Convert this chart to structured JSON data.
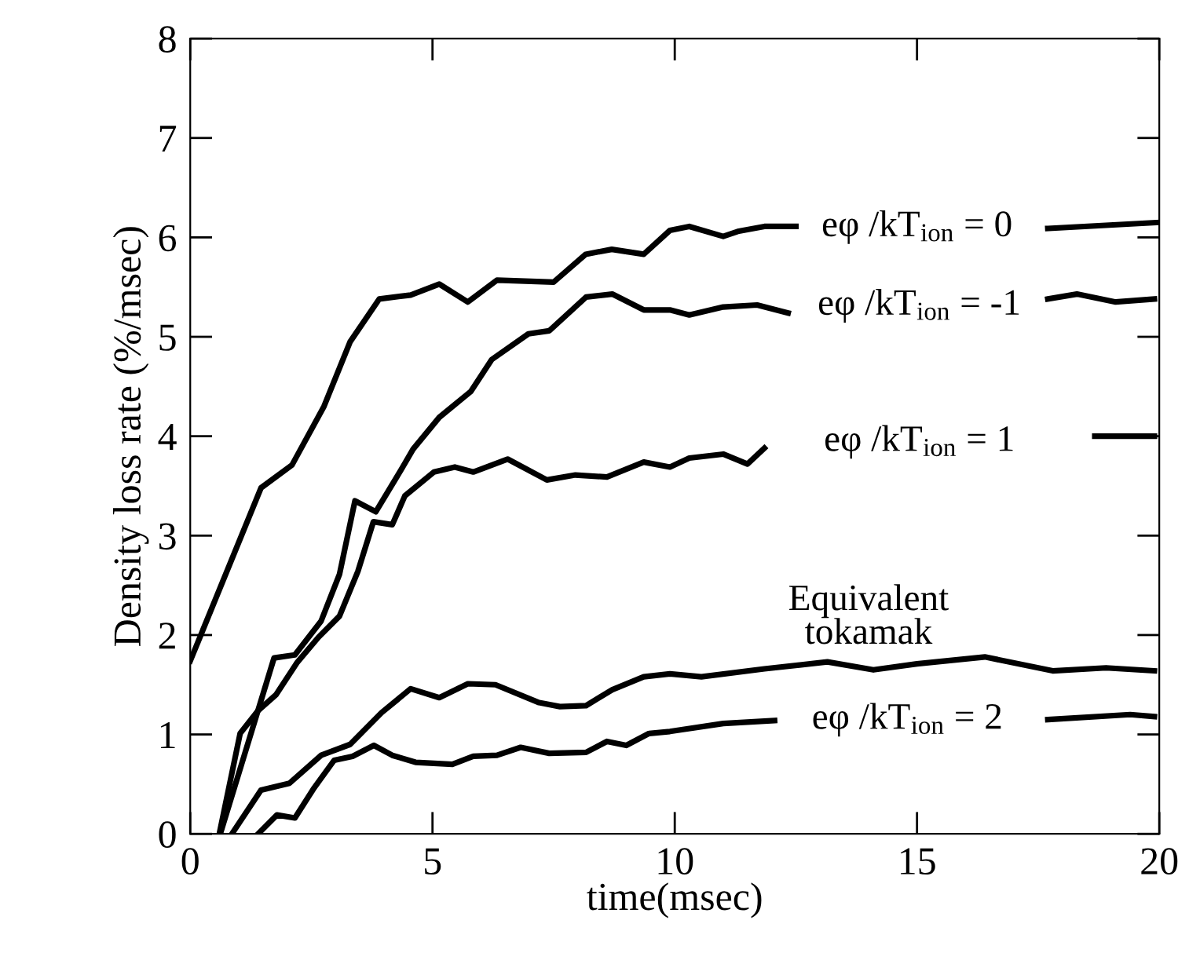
{
  "chart_data": {
    "type": "line",
    "xlabel": "time(msec)",
    "ylabel": "Density loss rate (%/msec)",
    "xlim": [
      0,
      20
    ],
    "ylim": [
      0,
      8
    ],
    "xticks": [
      0,
      5,
      10,
      15,
      20
    ],
    "yticks": [
      0,
      1,
      2,
      3,
      4,
      5,
      6,
      7,
      8
    ],
    "grid": false,
    "legend": false,
    "marker": "none",
    "line_style": "solid",
    "series": [
      {
        "name": "eφ /kT$_{ion}$ = 0",
        "color": "#000000",
        "x": [
          0,
          1.46,
          2.1,
          2.76,
          3.3,
          3.9,
          4.55,
          5.14,
          5.73,
          6.33,
          7.5,
          8.16,
          8.7,
          9.36,
          9.9,
          10.3,
          11.0,
          11.3,
          11.85,
          12.5,
          15.0,
          17.7,
          19.97
        ],
        "values": [
          1.74,
          3.48,
          3.71,
          4.3,
          4.95,
          5.38,
          5.42,
          5.53,
          5.35,
          5.57,
          5.55,
          5.83,
          5.88,
          5.83,
          6.07,
          6.11,
          6.01,
          6.06,
          6.11,
          6.11,
          null,
          6.09,
          6.15
        ]
      },
      {
        "name": "eφ /kT$_{ion}$ = -1",
        "color": "#000000",
        "x": [
          0.62,
          1.73,
          2.16,
          2.7,
          3.08,
          3.4,
          3.83,
          4.35,
          4.6,
          5.14,
          5.79,
          6.22,
          6.98,
          7.41,
          8.17,
          8.71,
          9.36,
          9.9,
          10.3,
          11.0,
          11.7,
          12.34,
          15.05,
          17.7,
          18.3,
          19.1,
          19.9
        ],
        "values": [
          0,
          1.77,
          1.8,
          2.14,
          2.61,
          3.35,
          3.24,
          3.66,
          3.87,
          4.19,
          4.45,
          4.77,
          5.03,
          5.06,
          5.4,
          5.43,
          5.27,
          5.27,
          5.22,
          5.3,
          5.32,
          5.24,
          null,
          5.38,
          5.43,
          5.35,
          5.38
        ]
      },
      {
        "name": "eφ /kT$_{ion}$ = 1",
        "color": "#000000",
        "x": [
          0.6,
          1.03,
          1.4,
          1.77,
          2.2,
          2.65,
          3.08,
          3.46,
          3.78,
          4.17,
          4.43,
          5.03,
          5.46,
          5.84,
          6.55,
          7.36,
          7.95,
          8.6,
          9.36,
          9.9,
          10.3,
          11.0,
          11.5,
          11.85,
          15.05,
          18.67,
          19.9
        ],
        "values": [
          0,
          1.01,
          1.24,
          1.4,
          1.72,
          1.98,
          2.19,
          2.64,
          3.14,
          3.11,
          3.4,
          3.64,
          3.69,
          3.64,
          3.77,
          3.56,
          3.61,
          3.59,
          3.74,
          3.69,
          3.78,
          3.82,
          3.72,
          3.88,
          null,
          4.0,
          4.0
        ]
      },
      {
        "name": "Equivalent\ntokamak",
        "color": "#000000",
        "x": [
          0.86,
          1.46,
          2.05,
          2.7,
          3.3,
          3.95,
          4.55,
          5.14,
          5.73,
          6.3,
          7.2,
          7.63,
          8.17,
          8.71,
          9.36,
          9.9,
          10.55,
          11.85,
          13.15,
          14.1,
          15.0,
          16.4,
          17.8,
          18.9,
          19.9
        ],
        "values": [
          0,
          0.44,
          0.51,
          0.79,
          0.9,
          1.22,
          1.46,
          1.37,
          1.51,
          1.5,
          1.32,
          1.28,
          1.29,
          1.45,
          1.58,
          1.61,
          1.58,
          1.66,
          1.73,
          1.65,
          1.71,
          1.78,
          1.64,
          1.67,
          1.64
        ]
      },
      {
        "name": "eφ /kT$_{ion}$ = 2",
        "color": "#000000",
        "x": [
          1.4,
          1.79,
          2.16,
          2.54,
          2.97,
          3.35,
          3.79,
          4.17,
          4.65,
          5.41,
          5.84,
          6.33,
          6.82,
          7.41,
          8.17,
          8.6,
          9.0,
          9.47,
          9.9,
          11.0,
          12.06,
          14.8,
          17.7,
          19.4,
          19.9
        ],
        "values": [
          0,
          0.19,
          0.16,
          0.45,
          0.74,
          0.78,
          0.89,
          0.79,
          0.72,
          0.7,
          0.78,
          0.79,
          0.87,
          0.81,
          0.82,
          0.93,
          0.89,
          1.01,
          1.03,
          1.11,
          1.14,
          null,
          1.15,
          1.2,
          1.18
        ]
      }
    ]
  }
}
